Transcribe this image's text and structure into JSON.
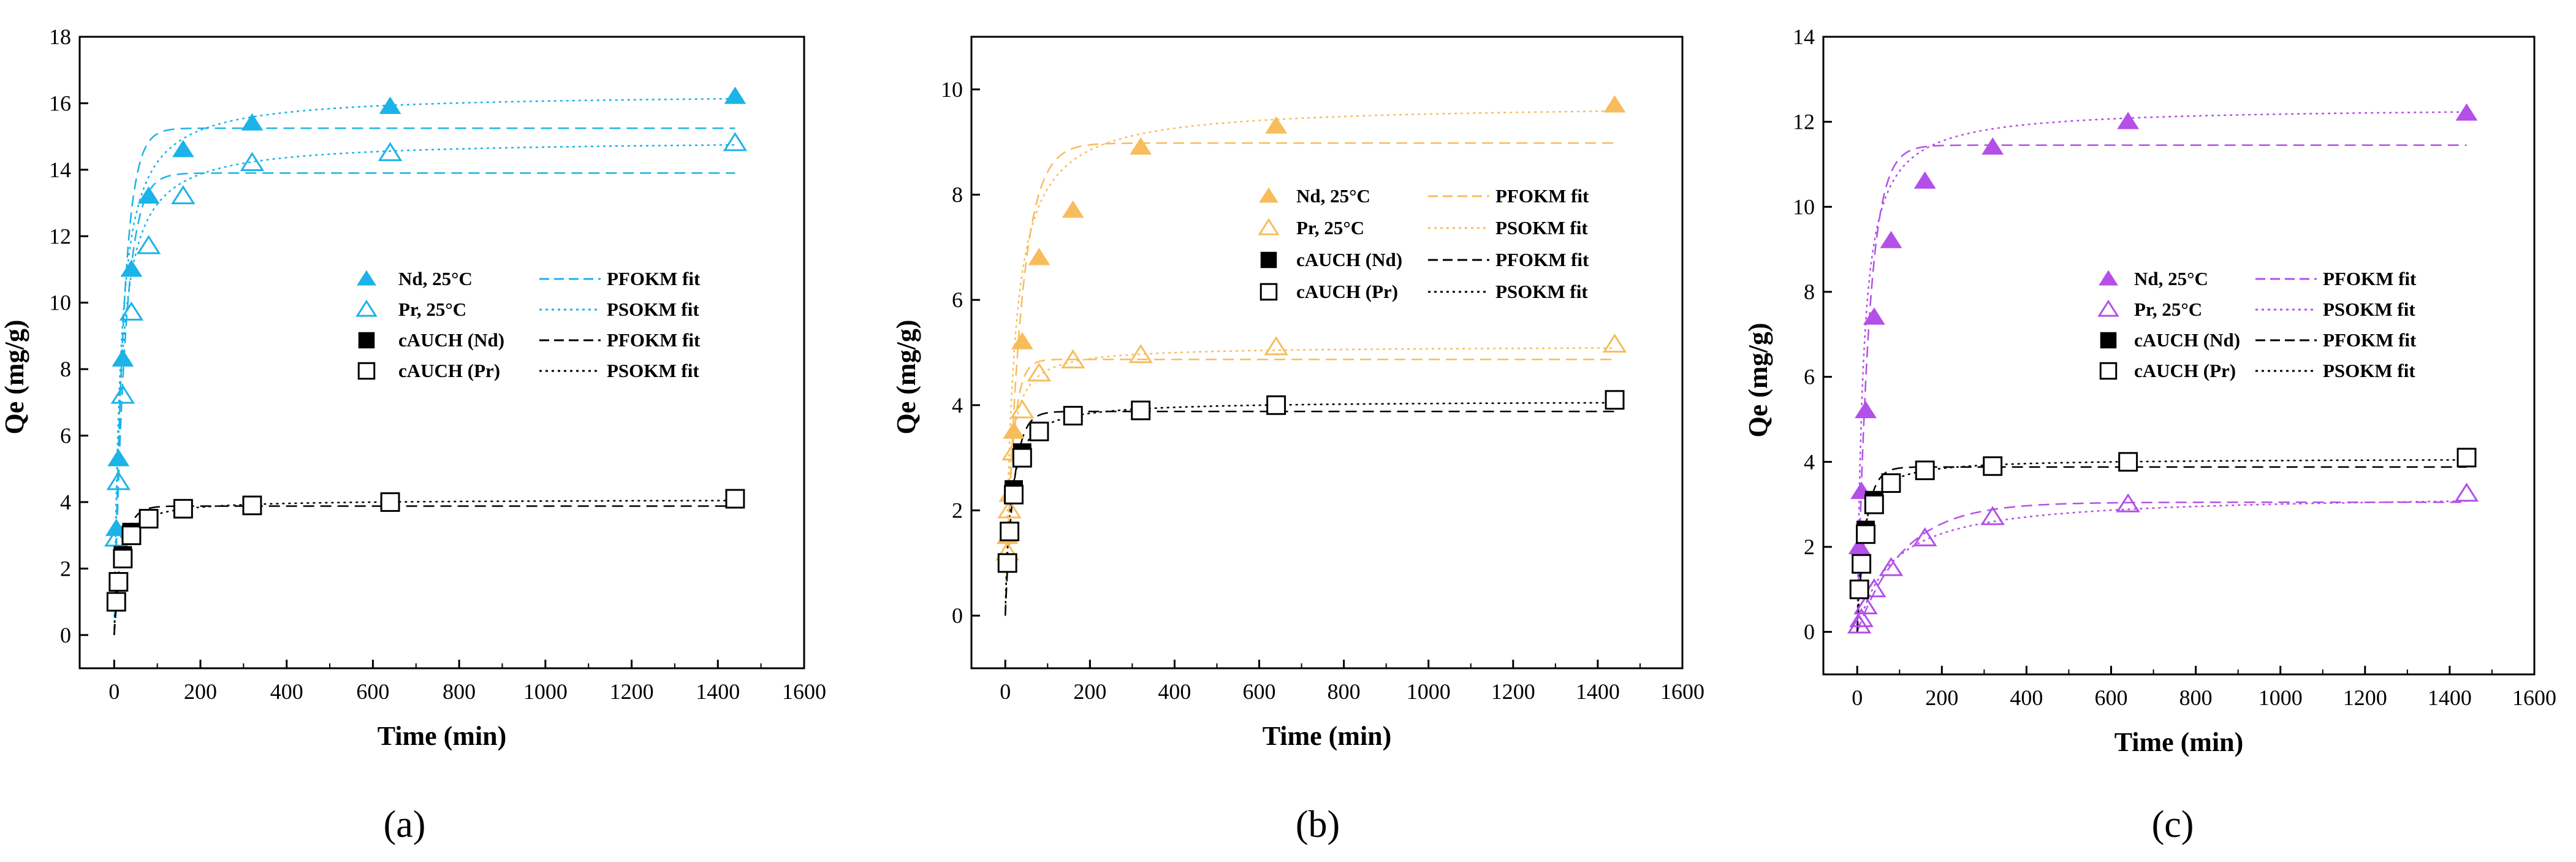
{
  "chart_data": [
    {
      "type": "scatter",
      "panel_label": "(a)",
      "xlabel": "Time (min)",
      "ylabel": "Qe (mg/g)",
      "xlim": [
        -80,
        1600
      ],
      "ylim": [
        -1,
        18
      ],
      "xticks": [
        0,
        200,
        400,
        600,
        800,
        1000,
        1200,
        1400,
        1600
      ],
      "yticks": [
        0,
        2,
        4,
        6,
        8,
        10,
        12,
        14,
        16,
        18
      ],
      "legend_position": "center-right",
      "series": [
        {
          "name": "Nd, 25°C",
          "marker": "triangle-filled",
          "color": "#1bb3e8",
          "x": [
            5,
            10,
            20,
            40,
            80,
            160,
            320,
            640,
            1440
          ],
          "y": [
            3.2,
            5.3,
            8.3,
            11.0,
            13.2,
            14.6,
            15.4,
            15.9,
            16.2
          ]
        },
        {
          "name": "Pr, 25°C",
          "marker": "triangle-open",
          "color": "#1bb3e8",
          "x": [
            5,
            10,
            20,
            40,
            80,
            160,
            320,
            640,
            1440
          ],
          "y": [
            2.9,
            4.6,
            7.2,
            9.7,
            11.7,
            13.2,
            14.2,
            14.5,
            14.8
          ]
        },
        {
          "name": "cAUCH (Nd)",
          "marker": "square-filled",
          "color": "#000000",
          "x": [
            5,
            10,
            20,
            40,
            80,
            160,
            320,
            640,
            1440
          ],
          "y": [
            1.0,
            1.6,
            2.4,
            3.1,
            3.5,
            3.8,
            3.9,
            4.0,
            4.1
          ]
        },
        {
          "name": "cAUCH (Pr)",
          "marker": "square-open",
          "color": "#000000",
          "x": [
            5,
            10,
            20,
            40,
            80,
            160,
            320,
            640,
            1440
          ],
          "y": [
            1.0,
            1.6,
            2.3,
            3.0,
            3.5,
            3.8,
            3.9,
            4.0,
            4.1
          ]
        }
      ],
      "fits": [
        {
          "name": "PFOKM fit",
          "model": "PFO",
          "style": "dashed",
          "color": "#1bb3e8",
          "qe": 15.25,
          "k": 0.045
        },
        {
          "name": "PSOKM fit",
          "model": "PSO",
          "style": "dotted",
          "color": "#1bb3e8",
          "qe": 16.3,
          "k": 0.0042
        },
        {
          "name": "PFOKM fit",
          "model": "PFO",
          "style": "dashed",
          "color": "#1bb3e8",
          "qe": 13.9,
          "k": 0.04
        },
        {
          "name": "PSOKM fit",
          "model": "PSO",
          "style": "dotted",
          "color": "#1bb3e8",
          "qe": 14.9,
          "k": 0.0045
        },
        {
          "name": "PFOKM fit",
          "model": "PFO",
          "style": "dashed",
          "color": "#000000",
          "qe": 3.88,
          "k": 0.05
        },
        {
          "name": "PSOKM fit",
          "model": "PSO",
          "style": "dotted",
          "color": "#000000",
          "qe": 4.08,
          "k": 0.02
        }
      ],
      "legend": [
        {
          "label": "Nd, 25°C",
          "marker": "triangle-filled",
          "color": "#1bb3e8",
          "fit_label": "PFOKM fit",
          "fit_style": "dashed",
          "fit_color": "#1bb3e8"
        },
        {
          "label": "Pr, 25°C",
          "marker": "triangle-open",
          "color": "#1bb3e8",
          "fit_label": "PSOKM fit",
          "fit_style": "dotted",
          "fit_color": "#1bb3e8"
        },
        {
          "label": "cAUCH (Nd)",
          "marker": "square-filled",
          "color": "#000000",
          "fit_label": "PFOKM fit",
          "fit_style": "dashed",
          "fit_color": "#000000"
        },
        {
          "label": "cAUCH (Pr)",
          "marker": "square-open",
          "color": "#000000",
          "fit_label": "PSOKM fit",
          "fit_style": "dotted",
          "fit_color": "#000000"
        }
      ]
    },
    {
      "type": "scatter",
      "panel_label": "(b)",
      "xlabel": "Time (min)",
      "ylabel": "Qe (mg/g)",
      "xlim": [
        -80,
        1600
      ],
      "ylim": [
        -1,
        11
      ],
      "xticks": [
        0,
        200,
        400,
        600,
        800,
        1000,
        1200,
        1400,
        1600
      ],
      "yticks": [
        0,
        2,
        4,
        6,
        8,
        10
      ],
      "legend_position": "center-right",
      "series": [
        {
          "name": "Nd, 25°C",
          "marker": "triangle-filled",
          "color": "#f7bd5c",
          "x": [
            5,
            10,
            20,
            40,
            80,
            160,
            320,
            640,
            1440
          ],
          "y": [
            1.5,
            2.3,
            3.5,
            5.2,
            6.8,
            7.7,
            8.9,
            9.3,
            9.7
          ]
        },
        {
          "name": "Pr, 25°C",
          "marker": "triangle-open",
          "color": "#f7bd5c",
          "x": [
            5,
            10,
            20,
            40,
            80,
            160,
            320,
            640,
            1440
          ],
          "y": [
            1.2,
            2.0,
            3.1,
            3.9,
            4.6,
            4.85,
            4.95,
            5.1,
            5.15
          ]
        },
        {
          "name": "cAUCH (Nd)",
          "marker": "square-filled",
          "color": "#000000",
          "x": [
            5,
            10,
            20,
            40,
            80,
            160,
            320,
            640,
            1440
          ],
          "y": [
            1.0,
            1.6,
            2.4,
            3.1,
            3.5,
            3.8,
            3.9,
            4.0,
            4.1
          ]
        },
        {
          "name": "cAUCH (Pr)",
          "marker": "square-open",
          "color": "#000000",
          "x": [
            5,
            10,
            20,
            40,
            80,
            160,
            320,
            640,
            1440
          ],
          "y": [
            1.0,
            1.6,
            2.3,
            3.0,
            3.5,
            3.8,
            3.9,
            4.0,
            4.1
          ]
        }
      ],
      "fits": [
        {
          "name": "PFOKM fit",
          "model": "PFO",
          "style": "dashed",
          "color": "#f7bd5c",
          "qe": 8.98,
          "k": 0.028
        },
        {
          "name": "PSOKM fit",
          "model": "PSO",
          "style": "dotted",
          "color": "#f7bd5c",
          "qe": 9.72,
          "k": 0.0052
        },
        {
          "name": "PFOKM fit",
          "model": "PFO",
          "style": "dashed",
          "color": "#f7bd5c",
          "qe": 4.87,
          "k": 0.06
        },
        {
          "name": "PSOKM fit",
          "model": "PSO",
          "style": "dotted",
          "color": "#f7bd5c",
          "qe": 5.12,
          "k": 0.02
        },
        {
          "name": "PFOKM fit",
          "model": "PFO",
          "style": "dashed",
          "color": "#000000",
          "qe": 3.88,
          "k": 0.05
        },
        {
          "name": "PSOKM fit",
          "model": "PSO",
          "style": "dotted",
          "color": "#000000",
          "qe": 4.08,
          "k": 0.02
        }
      ],
      "legend": [
        {
          "label": "Nd, 25°C",
          "marker": "triangle-filled",
          "color": "#f7bd5c",
          "fit_label": "PFOKM fit",
          "fit_style": "dashed",
          "fit_color": "#f7bd5c"
        },
        {
          "label": "Pr, 25°C",
          "marker": "triangle-open",
          "color": "#f7bd5c",
          "fit_label": "PSOKM fit",
          "fit_style": "dotted",
          "fit_color": "#f7bd5c"
        },
        {
          "label": "cAUCH (Nd)",
          "marker": "square-filled",
          "color": "#000000",
          "fit_label": "PFOKM fit",
          "fit_style": "dashed",
          "fit_color": "#000000"
        },
        {
          "label": "cAUCH (Pr)",
          "marker": "square-open",
          "color": "#000000",
          "fit_label": "PSOKM fit",
          "fit_style": "dotted",
          "fit_color": "#000000"
        }
      ]
    },
    {
      "type": "scatter",
      "panel_label": "(c)",
      "xlabel": "Time (min)",
      "ylabel": "Qe (mg/g)",
      "xlim": [
        -80,
        1600
      ],
      "ylim": [
        -1,
        14
      ],
      "xticks": [
        0,
        200,
        400,
        600,
        800,
        1000,
        1200,
        1400,
        1600
      ],
      "yticks": [
        0,
        2,
        4,
        6,
        8,
        10,
        12,
        14
      ],
      "legend_position": "center-right",
      "series": [
        {
          "name": "Nd, 25°C",
          "marker": "triangle-filled",
          "color": "#b44fe8",
          "x": [
            5,
            10,
            20,
            40,
            80,
            160,
            320,
            640,
            1440
          ],
          "y": [
            2.0,
            3.3,
            5.2,
            7.4,
            9.2,
            10.6,
            11.4,
            12.0,
            12.2
          ]
        },
        {
          "name": "Pr, 25°C",
          "marker": "triangle-open",
          "color": "#b44fe8",
          "x": [
            5,
            10,
            20,
            40,
            80,
            160,
            320,
            640,
            1440
          ],
          "y": [
            0.15,
            0.3,
            0.6,
            1.0,
            1.5,
            2.2,
            2.7,
            3.0,
            3.25
          ]
        },
        {
          "name": "cAUCH (Nd)",
          "marker": "square-filled",
          "color": "#000000",
          "x": [
            5,
            10,
            20,
            40,
            80,
            160,
            320,
            640,
            1440
          ],
          "y": [
            1.0,
            1.6,
            2.4,
            3.1,
            3.5,
            3.8,
            3.9,
            4.0,
            4.1
          ]
        },
        {
          "name": "cAUCH (Pr)",
          "marker": "square-open",
          "color": "#000000",
          "x": [
            5,
            10,
            20,
            40,
            80,
            160,
            320,
            640,
            1440
          ],
          "y": [
            1.0,
            1.6,
            2.3,
            3.0,
            3.5,
            3.8,
            3.9,
            4.0,
            4.1
          ]
        }
      ],
      "fits": [
        {
          "name": "PFOKM fit",
          "model": "PFO",
          "style": "dashed",
          "color": "#b44fe8",
          "qe": 11.45,
          "k": 0.036
        },
        {
          "name": "PSOKM fit",
          "model": "PSO",
          "style": "dotted",
          "color": "#b44fe8",
          "qe": 12.35,
          "k": 0.0058
        },
        {
          "name": "PFOKM fit",
          "model": "PFO",
          "style": "dashed",
          "color": "#b44fe8",
          "qe": 3.05,
          "k": 0.009
        },
        {
          "name": "PSOKM fit",
          "model": "PSO",
          "style": "dotted",
          "color": "#b44fe8",
          "qe": 3.25,
          "k": 0.0038
        },
        {
          "name": "PFOKM fit",
          "model": "PFO",
          "style": "dashed",
          "color": "#000000",
          "qe": 3.88,
          "k": 0.05
        },
        {
          "name": "PSOKM fit",
          "model": "PSO",
          "style": "dotted",
          "color": "#000000",
          "qe": 4.08,
          "k": 0.02
        }
      ],
      "legend": [
        {
          "label": "Nd, 25°C",
          "marker": "triangle-filled",
          "color": "#b44fe8",
          "fit_label": "PFOKM fit",
          "fit_style": "dashed",
          "fit_color": "#b44fe8"
        },
        {
          "label": "Pr, 25°C",
          "marker": "triangle-open",
          "color": "#b44fe8",
          "fit_label": "PSOKM fit",
          "fit_style": "dotted",
          "fit_color": "#b44fe8"
        },
        {
          "label": "cAUCH (Nd)",
          "marker": "square-filled",
          "color": "#000000",
          "fit_label": "PFOKM fit",
          "fit_style": "dashed",
          "fit_color": "#000000"
        },
        {
          "label": "cAUCH (Pr)",
          "marker": "square-open",
          "color": "#000000",
          "fit_label": "PSOKM fit",
          "fit_style": "dotted",
          "fit_color": "#000000"
        }
      ]
    }
  ]
}
